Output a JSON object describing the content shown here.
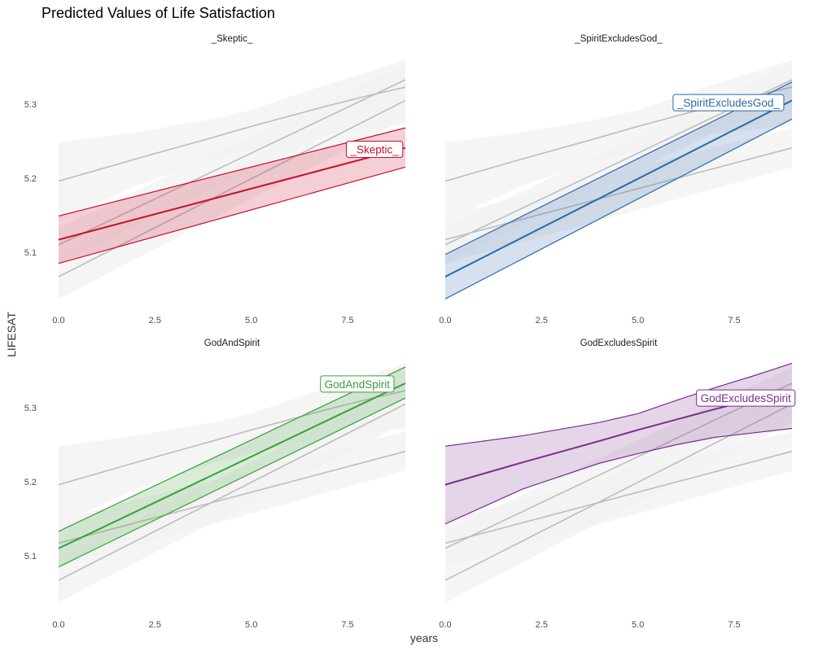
{
  "chart_data": {
    "type": "line",
    "title": "Predicted Values of Life Satisfaction",
    "xlabel": "years",
    "ylabel": "LIFESAT",
    "xlim": [
      0,
      9
    ],
    "ylim": [
      5.035,
      5.365
    ],
    "x_ticks": [
      "0.0",
      "2.5",
      "5.0",
      "7.5"
    ],
    "y_ticks": [
      "5.1",
      "5.2",
      "5.3"
    ],
    "legend": "none",
    "grid": false,
    "context_color": "#bdbdbd",
    "context_band_color": "#f2f2f2",
    "series": [
      {
        "name": "_Skeptic_",
        "color": "#c8102e",
        "x": [
          0,
          9
        ],
        "fit": [
          5.117,
          5.241
        ],
        "lower": [
          5.085,
          5.215
        ],
        "upper": [
          5.149,
          5.268
        ]
      },
      {
        "name": "_SpiritExcludesGod_",
        "color": "#2b6aa8",
        "x": [
          0,
          9
        ],
        "fit": [
          5.067,
          5.305
        ],
        "lower": [
          5.037,
          5.28
        ],
        "upper": [
          5.097,
          5.33
        ]
      },
      {
        "name": "GodAndSpirit",
        "color": "#3a9e3a",
        "x": [
          0,
          9
        ],
        "fit": [
          5.11,
          5.333
        ],
        "lower": [
          5.085,
          5.313
        ],
        "upper": [
          5.133,
          5.355
        ]
      },
      {
        "name": "GodExcludesSpirit",
        "color": "#7b2d8e",
        "x": [
          0,
          2,
          4,
          5,
          6,
          7,
          8,
          9
        ],
        "fit": [
          5.196,
          5.226,
          5.255,
          5.27,
          5.284,
          5.298,
          5.311,
          5.323
        ],
        "lower": [
          5.143,
          5.19,
          5.225,
          5.238,
          5.25,
          5.26,
          5.266,
          5.272
        ],
        "upper": [
          5.248,
          5.262,
          5.28,
          5.292,
          5.31,
          5.327,
          5.343,
          5.36
        ]
      }
    ],
    "panels": [
      {
        "strip": "_Skeptic_",
        "series": 0,
        "label_x": 8.2,
        "label_y": 5.239
      },
      {
        "strip": "_SpiritExcludesGod_",
        "series": 1,
        "label_x": 7.35,
        "label_y": 5.302
      },
      {
        "strip": "GodAndSpirit",
        "series": 2,
        "label_x": 7.75,
        "label_y": 5.332
      },
      {
        "strip": "GodExcludesSpirit",
        "series": 3,
        "label_x": 7.8,
        "label_y": 5.313
      }
    ]
  }
}
